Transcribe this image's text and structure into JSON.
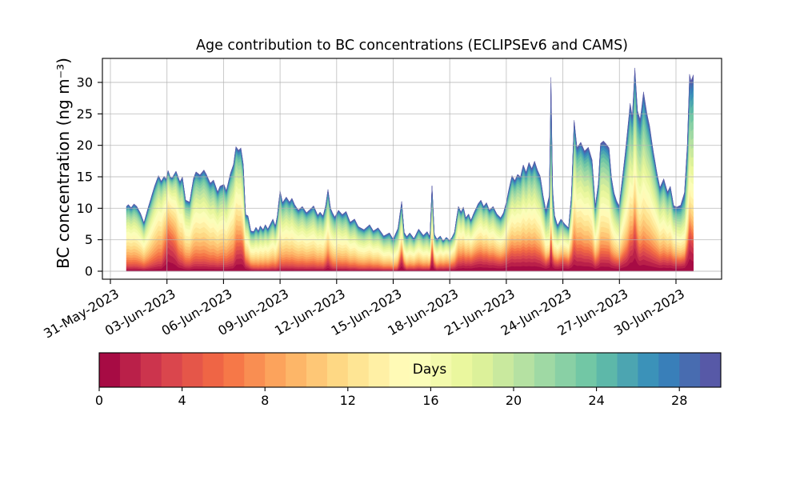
{
  "title": "Age contribution to BC concentrations (ECLIPSEv6 and CAMS)",
  "y_axis": {
    "label": "BC concentration (ng m⁻³)",
    "ticks": [
      0,
      5,
      10,
      15,
      20,
      25,
      30
    ],
    "lim": [
      -1.27,
      33.8
    ]
  },
  "x_axis": {
    "tick_positions_days": [
      0,
      3,
      6,
      9,
      12,
      15,
      18,
      21,
      24,
      27,
      30
    ],
    "tick_labels": [
      "31-May-2023",
      "03-Jun-2023",
      "06-Jun-2023",
      "09-Jun-2023",
      "12-Jun-2023",
      "15-Jun-2023",
      "18-Jun-2023",
      "21-Jun-2023",
      "24-Jun-2023",
      "27-Jun-2023",
      "30-Jun-2023"
    ],
    "lim": [
      -0.42,
      32.42
    ],
    "unit": "days since 31-May-2023 00:00"
  },
  "grid": {
    "on": true,
    "color": "#b0b0b0"
  },
  "colorbar": {
    "label": "Days",
    "ticks": [
      0,
      4,
      8,
      12,
      16,
      20,
      24,
      28
    ],
    "min": 0,
    "max": 30,
    "n_bins": 30,
    "outline_color": "#000000",
    "colormap_name": "Spectral",
    "colormap_anchors": [
      "#9e0142",
      "#d53e4f",
      "#f46d43",
      "#fdae61",
      "#fee08b",
      "#ffffbf",
      "#e6f598",
      "#abdda4",
      "#66c2a5",
      "#3288bd",
      "#5e4fa2"
    ]
  },
  "chart_data": {
    "type": "area",
    "subtype": "stacked-age-spectrum",
    "description": "Stacked area chart: total BC concentration split into 30 aerosol-age bins (0-30 days). Youngest air (0 days, dark red) stacked at bottom, oldest (30 days, blue-purple) on top, colored by the Spectral colormap shown in the colorbar.",
    "x_unit": "days since 31-May-2023 00:00",
    "y_unit": "ng m-3",
    "xlim": [
      -0.42,
      32.42
    ],
    "ylim": [
      -1.27,
      33.8
    ],
    "n_age_bins": 30,
    "total_envelope_points": [
      [
        0.85,
        10.3
      ],
      [
        0.95,
        10.6
      ],
      [
        1.1,
        10.1
      ],
      [
        1.25,
        10.7
      ],
      [
        1.4,
        10.3
      ],
      [
        1.6,
        9.2
      ],
      [
        1.78,
        7.7
      ],
      [
        1.95,
        9.6
      ],
      [
        2.15,
        11.6
      ],
      [
        2.35,
        13.6
      ],
      [
        2.55,
        15.2
      ],
      [
        2.7,
        14.3
      ],
      [
        2.85,
        15.1
      ],
      [
        2.95,
        14.6
      ],
      [
        3.06,
        16.0
      ],
      [
        3.17,
        15.0
      ],
      [
        3.27,
        14.8
      ],
      [
        3.48,
        15.9
      ],
      [
        3.69,
        14.2
      ],
      [
        3.82,
        15.0
      ],
      [
        3.99,
        11.3
      ],
      [
        4.2,
        11.0
      ],
      [
        4.41,
        14.8
      ],
      [
        4.54,
        15.8
      ],
      [
        4.75,
        15.3
      ],
      [
        4.96,
        16.1
      ],
      [
        5.09,
        15.4
      ],
      [
        5.3,
        14.0
      ],
      [
        5.47,
        14.5
      ],
      [
        5.69,
        12.6
      ],
      [
        5.81,
        13.5
      ],
      [
        6.02,
        13.8
      ],
      [
        6.15,
        12.8
      ],
      [
        6.36,
        15.5
      ],
      [
        6.53,
        17.0
      ],
      [
        6.66,
        19.8
      ],
      [
        6.8,
        19.2
      ],
      [
        6.92,
        19.6
      ],
      [
        7.05,
        17.0
      ],
      [
        7.17,
        9.0
      ],
      [
        7.3,
        8.8
      ],
      [
        7.45,
        6.4
      ],
      [
        7.6,
        6.3
      ],
      [
        7.72,
        7.0
      ],
      [
        7.85,
        6.4
      ],
      [
        7.95,
        7.2
      ],
      [
        8.1,
        6.6
      ],
      [
        8.22,
        7.4
      ],
      [
        8.35,
        6.7
      ],
      [
        8.5,
        7.6
      ],
      [
        8.62,
        8.3
      ],
      [
        8.75,
        7.2
      ],
      [
        8.85,
        8.8
      ],
      [
        9.0,
        12.8
      ],
      [
        9.13,
        10.9
      ],
      [
        9.33,
        11.8
      ],
      [
        9.5,
        11.0
      ],
      [
        9.63,
        11.6
      ],
      [
        9.77,
        10.6
      ],
      [
        9.97,
        9.7
      ],
      [
        10.18,
        10.3
      ],
      [
        10.4,
        9.3
      ],
      [
        10.55,
        9.7
      ],
      [
        10.78,
        10.4
      ],
      [
        11.0,
        8.9
      ],
      [
        11.12,
        9.4
      ],
      [
        11.28,
        8.8
      ],
      [
        11.42,
        10.5
      ],
      [
        11.54,
        13.0
      ],
      [
        11.68,
        10.0
      ],
      [
        11.78,
        9.3
      ],
      [
        11.9,
        8.6
      ],
      [
        12.1,
        9.7
      ],
      [
        12.3,
        9.0
      ],
      [
        12.5,
        9.5
      ],
      [
        12.72,
        7.8
      ],
      [
        12.95,
        8.3
      ],
      [
        13.15,
        7.1
      ],
      [
        13.45,
        6.6
      ],
      [
        13.75,
        7.4
      ],
      [
        13.95,
        6.4
      ],
      [
        14.2,
        6.9
      ],
      [
        14.5,
        5.6
      ],
      [
        14.8,
        6.1
      ],
      [
        15.0,
        5.1
      ],
      [
        15.25,
        6.8
      ],
      [
        15.45,
        11.1
      ],
      [
        15.58,
        6.2
      ],
      [
        15.72,
        5.5
      ],
      [
        15.88,
        6.1
      ],
      [
        16.1,
        5.2
      ],
      [
        16.35,
        6.7
      ],
      [
        16.6,
        5.7
      ],
      [
        16.8,
        6.3
      ],
      [
        16.95,
        5.5
      ],
      [
        17.06,
        13.6
      ],
      [
        17.18,
        5.9
      ],
      [
        17.32,
        5.1
      ],
      [
        17.5,
        5.6
      ],
      [
        17.65,
        4.8
      ],
      [
        17.82,
        5.4
      ],
      [
        18.0,
        4.9
      ],
      [
        18.12,
        5.4
      ],
      [
        18.25,
        6.2
      ],
      [
        18.35,
        8.2
      ],
      [
        18.46,
        10.3
      ],
      [
        18.6,
        9.4
      ],
      [
        18.72,
        10.2
      ],
      [
        18.85,
        8.5
      ],
      [
        19.0,
        9.1
      ],
      [
        19.12,
        8.1
      ],
      [
        19.3,
        9.4
      ],
      [
        19.5,
        10.7
      ],
      [
        19.65,
        11.3
      ],
      [
        19.8,
        10.3
      ],
      [
        19.95,
        10.9
      ],
      [
        20.1,
        9.7
      ],
      [
        20.3,
        10.3
      ],
      [
        20.5,
        9.1
      ],
      [
        20.7,
        8.5
      ],
      [
        20.85,
        9.3
      ],
      [
        21.0,
        11.0
      ],
      [
        21.15,
        13.2
      ],
      [
        21.3,
        15.2
      ],
      [
        21.45,
        14.4
      ],
      [
        21.6,
        15.4
      ],
      [
        21.75,
        15.0
      ],
      [
        21.9,
        16.9
      ],
      [
        22.05,
        15.7
      ],
      [
        22.2,
        17.3
      ],
      [
        22.35,
        16.3
      ],
      [
        22.5,
        17.5
      ],
      [
        22.65,
        16.1
      ],
      [
        22.8,
        15.1
      ],
      [
        22.95,
        12.1
      ],
      [
        23.1,
        9.7
      ],
      [
        23.28,
        12.0
      ],
      [
        23.37,
        30.8
      ],
      [
        23.46,
        13.0
      ],
      [
        23.56,
        8.9
      ],
      [
        23.72,
        7.3
      ],
      [
        23.9,
        8.3
      ],
      [
        24.1,
        7.5
      ],
      [
        24.3,
        6.9
      ],
      [
        24.45,
        12.0
      ],
      [
        24.6,
        24.0
      ],
      [
        24.75,
        19.6
      ],
      [
        24.95,
        20.5
      ],
      [
        25.15,
        19.1
      ],
      [
        25.35,
        19.7
      ],
      [
        25.55,
        17.7
      ],
      [
        25.72,
        10.4
      ],
      [
        25.88,
        14.0
      ],
      [
        26.0,
        20.3
      ],
      [
        26.15,
        20.7
      ],
      [
        26.3,
        20.2
      ],
      [
        26.45,
        19.6
      ],
      [
        26.58,
        14.8
      ],
      [
        26.72,
        12.4
      ],
      [
        26.85,
        11.2
      ],
      [
        26.98,
        10.4
      ],
      [
        27.15,
        14.6
      ],
      [
        27.35,
        20.0
      ],
      [
        27.57,
        26.7
      ],
      [
        27.68,
        24.6
      ],
      [
        27.82,
        32.3
      ],
      [
        27.96,
        25.5
      ],
      [
        28.1,
        24.1
      ],
      [
        28.28,
        28.5
      ],
      [
        28.45,
        25.2
      ],
      [
        28.6,
        23.1
      ],
      [
        28.8,
        19.0
      ],
      [
        29.0,
        15.5
      ],
      [
        29.15,
        13.3
      ],
      [
        29.35,
        14.7
      ],
      [
        29.55,
        12.6
      ],
      [
        29.7,
        13.5
      ],
      [
        29.88,
        10.4
      ],
      [
        30.05,
        10.2
      ],
      [
        30.25,
        10.5
      ],
      [
        30.45,
        12.5
      ],
      [
        30.6,
        20.0
      ],
      [
        30.72,
        31.3
      ],
      [
        30.8,
        30.2
      ],
      [
        30.92,
        31.2
      ]
    ],
    "young_age_mass_fraction_keypoints": [
      [
        0.85,
        0.05
      ],
      [
        2.7,
        0.06
      ],
      [
        2.9,
        0.2
      ],
      [
        3.05,
        0.33
      ],
      [
        3.3,
        0.28
      ],
      [
        3.6,
        0.12
      ],
      [
        3.9,
        0.07
      ],
      [
        6.5,
        0.07
      ],
      [
        6.7,
        0.18
      ],
      [
        7.0,
        0.2
      ],
      [
        7.3,
        0.1
      ],
      [
        7.7,
        0.05
      ],
      [
        11.3,
        0.06
      ],
      [
        11.54,
        0.14
      ],
      [
        11.8,
        0.06
      ],
      [
        15.2,
        0.05
      ],
      [
        15.45,
        0.28
      ],
      [
        15.7,
        0.08
      ],
      [
        16.9,
        0.08
      ],
      [
        17.06,
        0.3
      ],
      [
        17.3,
        0.1
      ],
      [
        18.2,
        0.12
      ],
      [
        18.7,
        0.17
      ],
      [
        19.4,
        0.2
      ],
      [
        20.4,
        0.18
      ],
      [
        21.3,
        0.18
      ],
      [
        22.3,
        0.16
      ],
      [
        23.1,
        0.15
      ],
      [
        23.37,
        0.2
      ],
      [
        23.6,
        0.17
      ],
      [
        24.1,
        0.22
      ],
      [
        24.6,
        0.15
      ],
      [
        25.4,
        0.13
      ],
      [
        26.2,
        0.12
      ],
      [
        26.9,
        0.13
      ],
      [
        27.4,
        0.13
      ],
      [
        27.82,
        0.24
      ],
      [
        28.05,
        0.13
      ],
      [
        28.6,
        0.12
      ],
      [
        29.3,
        0.13
      ],
      [
        30.0,
        0.15
      ],
      [
        30.45,
        0.15
      ],
      [
        30.72,
        0.24
      ],
      [
        30.92,
        0.18
      ]
    ],
    "mean_age_days_keypoints": [
      [
        0.85,
        14.5
      ],
      [
        2.0,
        15.0
      ],
      [
        2.9,
        13.0
      ],
      [
        3.2,
        12.0
      ],
      [
        3.8,
        14.5
      ],
      [
        5.5,
        15.0
      ],
      [
        6.6,
        14.5
      ],
      [
        7.0,
        15.5
      ],
      [
        8.0,
        15.5
      ],
      [
        10.0,
        15.0
      ],
      [
        12.0,
        15.5
      ],
      [
        14.0,
        15.5
      ],
      [
        15.45,
        17.0
      ],
      [
        16.2,
        15.5
      ],
      [
        17.06,
        17.0
      ],
      [
        17.6,
        14.5
      ],
      [
        18.5,
        14.5
      ],
      [
        19.5,
        15.0
      ],
      [
        21.0,
        15.5
      ],
      [
        22.4,
        16.0
      ],
      [
        23.0,
        16.5
      ],
      [
        23.37,
        22.0
      ],
      [
        23.6,
        17.0
      ],
      [
        24.2,
        15.5
      ],
      [
        24.6,
        16.0
      ],
      [
        25.4,
        16.5
      ],
      [
        26.15,
        17.0
      ],
      [
        27.0,
        17.0
      ],
      [
        27.82,
        17.5
      ],
      [
        28.3,
        17.5
      ],
      [
        29.0,
        16.0
      ],
      [
        30.0,
        16.5
      ],
      [
        30.6,
        19.0
      ],
      [
        30.78,
        20.0
      ],
      [
        30.92,
        20.0
      ]
    ],
    "age_distribution_model": {
      "broad_sigma_days": 7.5,
      "young_decay_days": 3.2
    }
  }
}
